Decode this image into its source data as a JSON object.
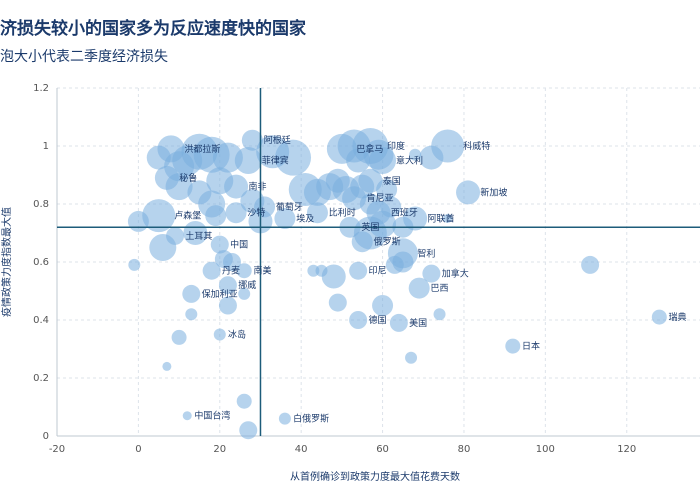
{
  "header": {
    "title": "济损失较小的国家多为反应速度快的国家",
    "subtitle": "泡大小代表二季度经济损失"
  },
  "chart_data": {
    "type": "scatter",
    "title": "济损失较小的国家多为反应速度快的国家",
    "subtitle": "泡大小代表二季度经济损失",
    "xlabel": "从首例确诊到政策力度最大值花费天数",
    "ylabel": "疫情政策力度指数最大值",
    "xlim": [
      -20,
      138
    ],
    "ylim": [
      0,
      1.2
    ],
    "xticks": [
      -20,
      0,
      20,
      40,
      60,
      80,
      100,
      120
    ],
    "yticks": [
      0,
      0.2,
      0.4,
      0.6,
      0.8,
      1,
      1.2
    ],
    "ref_lines": {
      "x": 30,
      "y": 0.72
    },
    "colors": {
      "bubble": "#7aaede",
      "axis_line": "#1d5c7a",
      "text": "#1b3a6b"
    },
    "points": [
      {
        "x": 28,
        "y": 1.02,
        "size": 0.5,
        "label": "阿根廷"
      },
      {
        "x": 8,
        "y": 0.99,
        "size": 0.7,
        "label": "洪都拉斯"
      },
      {
        "x": 15,
        "y": 0.98,
        "size": 1.0,
        "label": ""
      },
      {
        "x": 18,
        "y": 0.97,
        "size": 1.0,
        "label": ""
      },
      {
        "x": 12,
        "y": 0.95,
        "size": 0.8,
        "label": ""
      },
      {
        "x": 22,
        "y": 0.96,
        "size": 0.8,
        "label": ""
      },
      {
        "x": 27,
        "y": 0.95,
        "size": 0.7,
        "label": "菲律宾"
      },
      {
        "x": 33,
        "y": 0.98,
        "size": 0.9,
        "label": ""
      },
      {
        "x": 38,
        "y": 0.96,
        "size": 1.0,
        "label": ""
      },
      {
        "x": 5,
        "y": 0.96,
        "size": 0.6,
        "label": ""
      },
      {
        "x": 10,
        "y": 0.93,
        "size": 0.8,
        "label": ""
      },
      {
        "x": 7,
        "y": 0.89,
        "size": 0.6,
        "label": "秘鲁"
      },
      {
        "x": 10,
        "y": 0.86,
        "size": 0.7,
        "label": ""
      },
      {
        "x": 20,
        "y": 0.88,
        "size": 0.7,
        "label": ""
      },
      {
        "x": 24,
        "y": 0.86,
        "size": 0.6,
        "label": "南非"
      },
      {
        "x": 15,
        "y": 0.84,
        "size": 0.6,
        "label": ""
      },
      {
        "x": 18,
        "y": 0.8,
        "size": 0.7,
        "label": ""
      },
      {
        "x": 28,
        "y": 0.81,
        "size": 0.6,
        "label": ""
      },
      {
        "x": 31,
        "y": 0.79,
        "size": 0.5,
        "label": "葡萄牙"
      },
      {
        "x": 24,
        "y": 0.77,
        "size": 0.5,
        "label": "沙特"
      },
      {
        "x": 5,
        "y": 0.76,
        "size": 0.9,
        "label": "卢森堡"
      },
      {
        "x": 0,
        "y": 0.74,
        "size": 0.5,
        "label": ""
      },
      {
        "x": 19,
        "y": 0.76,
        "size": 0.5,
        "label": ""
      },
      {
        "x": 30,
        "y": 0.74,
        "size": 0.6,
        "label": ""
      },
      {
        "x": 36,
        "y": 0.75,
        "size": 0.5,
        "label": "埃及"
      },
      {
        "x": 44,
        "y": 0.77,
        "size": 0.5,
        "label": "比利时"
      },
      {
        "x": 41,
        "y": 0.85,
        "size": 0.9,
        "label": ""
      },
      {
        "x": 44,
        "y": 0.84,
        "size": 0.7,
        "label": ""
      },
      {
        "x": 47,
        "y": 0.86,
        "size": 0.7,
        "label": ""
      },
      {
        "x": 49,
        "y": 0.88,
        "size": 0.6,
        "label": ""
      },
      {
        "x": 51,
        "y": 0.85,
        "size": 0.7,
        "label": ""
      },
      {
        "x": 53,
        "y": 0.82,
        "size": 0.6,
        "label": "肯尼亚"
      },
      {
        "x": 55,
        "y": 0.86,
        "size": 0.6,
        "label": ""
      },
      {
        "x": 57,
        "y": 0.8,
        "size": 0.5,
        "label": ""
      },
      {
        "x": 59,
        "y": 0.77,
        "size": 0.6,
        "label": "西班牙"
      },
      {
        "x": 61,
        "y": 0.85,
        "size": 0.5,
        "label": ""
      },
      {
        "x": 62,
        "y": 0.79,
        "size": 0.5,
        "label": ""
      },
      {
        "x": 57,
        "y": 0.88,
        "size": 0.6,
        "label": "泰国"
      },
      {
        "x": 60,
        "y": 0.95,
        "size": 0.7,
        "label": "意大利"
      },
      {
        "x": 50,
        "y": 0.99,
        "size": 0.8,
        "label": "巴拿马"
      },
      {
        "x": 53,
        "y": 1.0,
        "size": 0.9,
        "label": ""
      },
      {
        "x": 57,
        "y": 1.0,
        "size": 1.0,
        "label": "印度"
      },
      {
        "x": 59,
        "y": 0.97,
        "size": 0.8,
        "label": ""
      },
      {
        "x": 54,
        "y": 0.95,
        "size": 0.6,
        "label": ""
      },
      {
        "x": 76,
        "y": 1.0,
        "size": 0.9,
        "label": "科威特"
      },
      {
        "x": 72,
        "y": 0.96,
        "size": 0.6,
        "label": ""
      },
      {
        "x": 68,
        "y": 0.97,
        "size": 0.2,
        "label": ""
      },
      {
        "x": 81,
        "y": 0.84,
        "size": 0.6,
        "label": "新加坡"
      },
      {
        "x": 68,
        "y": 0.75,
        "size": 0.6,
        "label": "阿联酋"
      },
      {
        "x": 65,
        "y": 0.72,
        "size": 0.5,
        "label": ""
      },
      {
        "x": 76,
        "y": 0.75,
        "size": 0.1,
        "label": ""
      },
      {
        "x": 52,
        "y": 0.72,
        "size": 0.5,
        "label": "英国"
      },
      {
        "x": 57,
        "y": 0.7,
        "size": 0.9,
        "label": ""
      },
      {
        "x": 60,
        "y": 0.73,
        "size": 0.7,
        "label": ""
      },
      {
        "x": 55,
        "y": 0.67,
        "size": 0.5,
        "label": "俄罗斯"
      },
      {
        "x": 65,
        "y": 0.63,
        "size": 0.8,
        "label": "智利"
      },
      {
        "x": 65,
        "y": 0.6,
        "size": 0.5,
        "label": ""
      },
      {
        "x": 54,
        "y": 0.57,
        "size": 0.4,
        "label": "印尼"
      },
      {
        "x": 63,
        "y": 0.59,
        "size": 0.4,
        "label": ""
      },
      {
        "x": 72,
        "y": 0.56,
        "size": 0.4,
        "label": "加拿大"
      },
      {
        "x": 69,
        "y": 0.51,
        "size": 0.5,
        "label": "巴西"
      },
      {
        "x": 48,
        "y": 0.55,
        "size": 0.6,
        "label": ""
      },
      {
        "x": 43,
        "y": 0.57,
        "size": 0.2,
        "label": ""
      },
      {
        "x": 45,
        "y": 0.57,
        "size": 0.2,
        "label": ""
      },
      {
        "x": 49,
        "y": 0.46,
        "size": 0.4,
        "label": ""
      },
      {
        "x": 54,
        "y": 0.4,
        "size": 0.4,
        "label": "德国"
      },
      {
        "x": 60,
        "y": 0.45,
        "size": 0.5,
        "label": ""
      },
      {
        "x": 64,
        "y": 0.39,
        "size": 0.4,
        "label": "美国"
      },
      {
        "x": 74,
        "y": 0.42,
        "size": 0.2,
        "label": ""
      },
      {
        "x": 67,
        "y": 0.27,
        "size": 0.2,
        "label": ""
      },
      {
        "x": 111,
        "y": 0.59,
        "size": 0.4,
        "label": ""
      },
      {
        "x": 128,
        "y": 0.41,
        "size": 0.3,
        "label": "瑞典"
      },
      {
        "x": 92,
        "y": 0.31,
        "size": 0.3,
        "label": "日本"
      },
      {
        "x": 6,
        "y": 0.65,
        "size": 0.7,
        "label": ""
      },
      {
        "x": 9,
        "y": 0.69,
        "size": 0.4,
        "label": "土耳其"
      },
      {
        "x": 14,
        "y": 0.7,
        "size": 0.6,
        "label": ""
      },
      {
        "x": 20,
        "y": 0.66,
        "size": 0.4,
        "label": "中国"
      },
      {
        "x": 21,
        "y": 0.61,
        "size": 0.4,
        "label": ""
      },
      {
        "x": 23,
        "y": 0.6,
        "size": 0.4,
        "label": ""
      },
      {
        "x": 26,
        "y": 0.57,
        "size": 0.3,
        "label": "南美"
      },
      {
        "x": 18,
        "y": 0.57,
        "size": 0.4,
        "label": "丹麦"
      },
      {
        "x": 22,
        "y": 0.52,
        "size": 0.4,
        "label": "挪威"
      },
      {
        "x": 13,
        "y": 0.49,
        "size": 0.4,
        "label": "保加利亚"
      },
      {
        "x": 22,
        "y": 0.45,
        "size": 0.4,
        "label": ""
      },
      {
        "x": 26,
        "y": 0.49,
        "size": 0.2,
        "label": ""
      },
      {
        "x": 13,
        "y": 0.42,
        "size": 0.2,
        "label": ""
      },
      {
        "x": 10,
        "y": 0.34,
        "size": 0.3,
        "label": ""
      },
      {
        "x": 20,
        "y": 0.35,
        "size": 0.2,
        "label": "冰岛"
      },
      {
        "x": 7,
        "y": 0.24,
        "size": 0.1,
        "label": ""
      },
      {
        "x": -1,
        "y": 0.59,
        "size": 0.2,
        "label": ""
      },
      {
        "x": 12,
        "y": 0.07,
        "size": 0.1,
        "label": "中国台湾"
      },
      {
        "x": 26,
        "y": 0.12,
        "size": 0.3,
        "label": ""
      },
      {
        "x": 27,
        "y": 0.02,
        "size": 0.4,
        "label": ""
      },
      {
        "x": 36,
        "y": 0.06,
        "size": 0.2,
        "label": "白俄罗斯"
      }
    ]
  }
}
